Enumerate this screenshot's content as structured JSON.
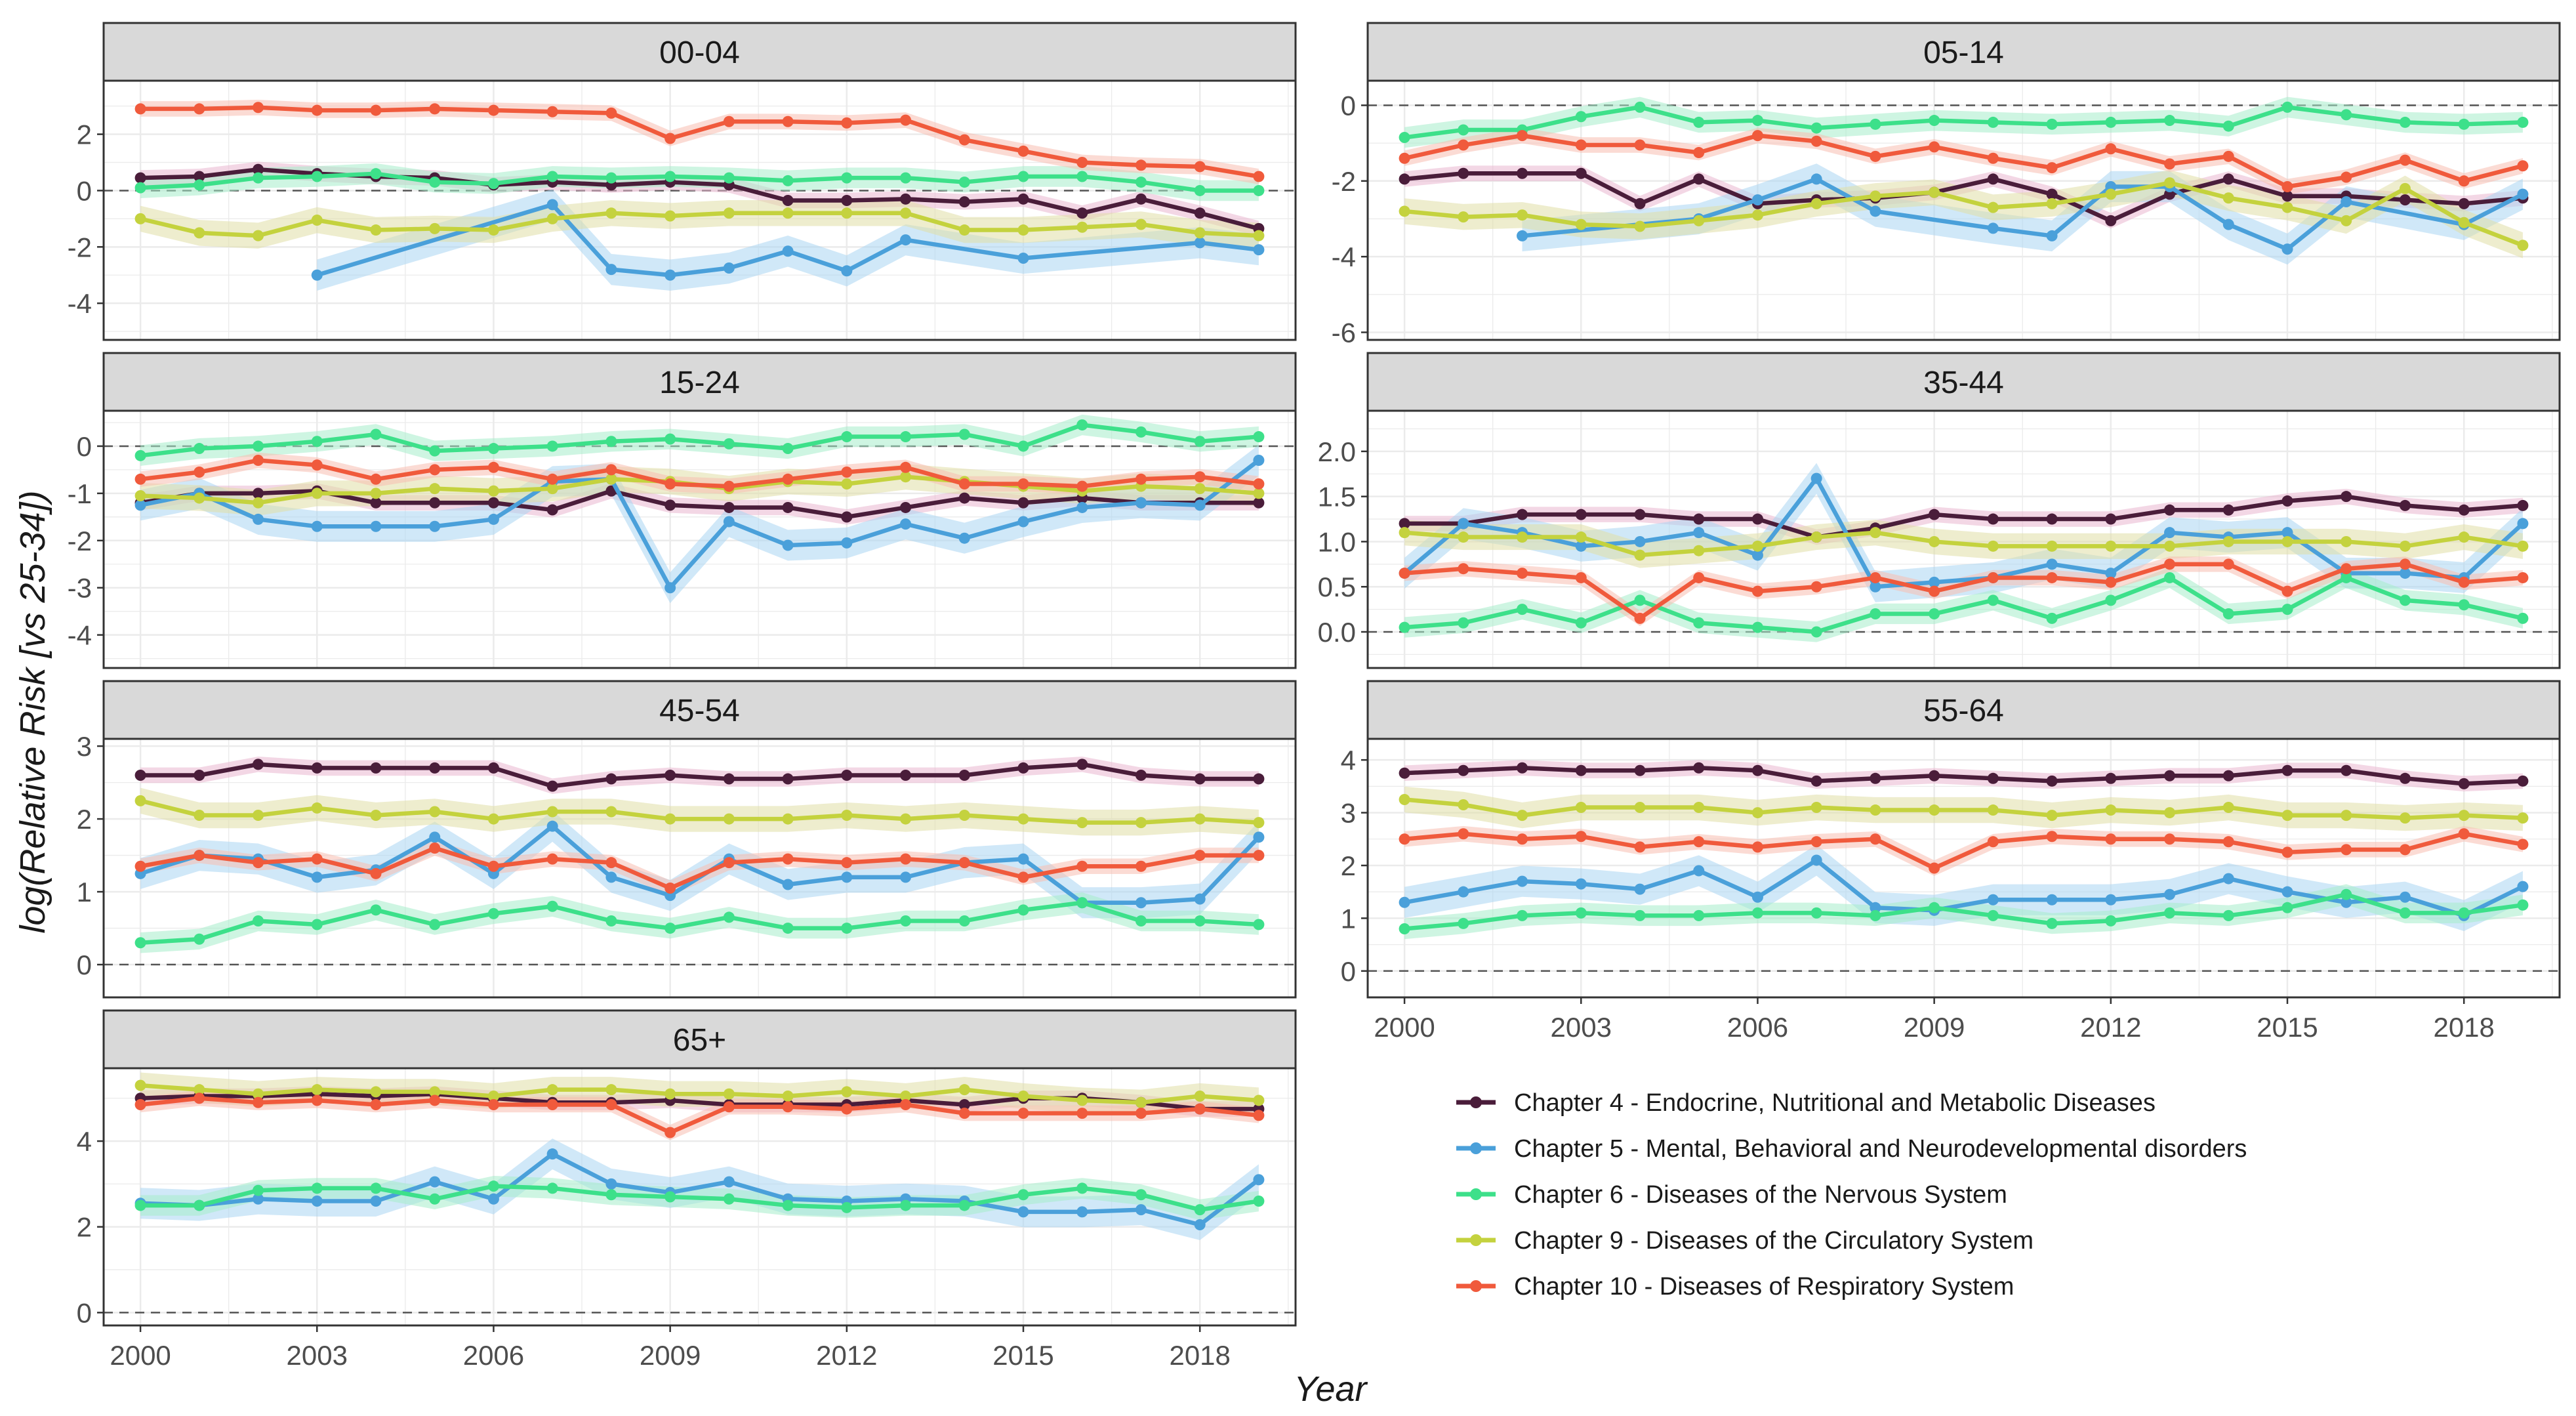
{
  "chart_data": {
    "type": "line",
    "title": "",
    "ylabel": "log(Relative Risk [vs 25-34])",
    "xlabel": "Year",
    "x": [
      2000,
      2001,
      2002,
      2003,
      2004,
      2005,
      2006,
      2007,
      2008,
      2009,
      2010,
      2011,
      2012,
      2013,
      2014,
      2015,
      2016,
      2017,
      2018,
      2019
    ],
    "x_ticks": [
      "2000",
      "2003",
      "2006",
      "2009",
      "2012",
      "2015",
      "2018"
    ],
    "legend_position": "bottom-right",
    "series_meta": [
      {
        "key": "ch4",
        "name": "Chapter 4 - Endocrine, Nutritional and Metabolic Diseases",
        "color": "#4a1d3a",
        "band": "#e9b6cf"
      },
      {
        "key": "ch5",
        "name": "Chapter 5 - Mental, Behavioral and Neurodevelopmental disorders",
        "color": "#4aa0da",
        "band": "#a9d6f2"
      },
      {
        "key": "ch6",
        "name": "Chapter 6 - Diseases of the Nervous System",
        "color": "#3de08a",
        "band": "#a6eccb"
      },
      {
        "key": "ch9",
        "name": "Chapter 9 - Diseases of the Circulatory System",
        "color": "#c4d23e",
        "band": "#e0dfa6"
      },
      {
        "key": "ch10",
        "name": "Chapter 10 - Diseases of Respiratory System",
        "color": "#f05a3c",
        "band": "#f8bdb0"
      }
    ],
    "panels": [
      {
        "label": "00-04",
        "ylim": [
          -5.3,
          3.9
        ],
        "yticks": [
          -4,
          -2,
          0,
          2
        ],
        "series": {
          "ch4": [
            0.45,
            0.5,
            0.75,
            0.6,
            0.5,
            0.45,
            0.2,
            0.3,
            0.2,
            0.3,
            0.2,
            -0.35,
            -0.35,
            -0.3,
            -0.4,
            -0.3,
            -0.8,
            -0.3,
            -0.8,
            -1.35
          ],
          "ch5": [
            null,
            null,
            null,
            -3.0,
            null,
            null,
            null,
            -0.5,
            -2.8,
            -3.0,
            -2.75,
            -2.15,
            -2.85,
            -1.75,
            null,
            -2.4,
            null,
            null,
            -1.85,
            -2.1
          ],
          "ch6": [
            0.1,
            0.2,
            0.45,
            0.5,
            0.6,
            0.3,
            0.25,
            0.5,
            0.45,
            0.5,
            0.45,
            0.35,
            0.45,
            0.45,
            0.3,
            0.5,
            0.5,
            0.3,
            0.0,
            0.0
          ],
          "ch9": [
            -1.0,
            -1.5,
            -1.6,
            -1.05,
            -1.4,
            -1.35,
            -1.4,
            -1.0,
            -0.8,
            -0.9,
            -0.8,
            -0.8,
            -0.8,
            -0.8,
            -1.4,
            -1.4,
            -1.3,
            -1.2,
            -1.5,
            -1.6
          ],
          "ch10": [
            2.9,
            2.9,
            2.95,
            2.85,
            2.85,
            2.9,
            2.85,
            2.8,
            2.75,
            1.85,
            2.45,
            2.45,
            2.4,
            2.5,
            1.8,
            1.4,
            1.0,
            0.9,
            0.85,
            0.5
          ]
        }
      },
      {
        "label": "05-14",
        "ylim": [
          -6.2,
          0.65
        ],
        "yticks": [
          -6,
          -4,
          -2,
          0
        ],
        "series": {
          "ch4": [
            -1.95,
            -1.8,
            -1.8,
            -1.8,
            -2.6,
            -1.95,
            -2.6,
            -2.5,
            -2.45,
            -2.3,
            -1.95,
            -2.35,
            -3.05,
            -2.35,
            -1.95,
            -2.4,
            -2.4,
            -2.5,
            -2.6,
            -2.45
          ],
          "ch5": [
            null,
            null,
            -3.45,
            null,
            null,
            -3.0,
            -2.5,
            -1.95,
            -2.8,
            null,
            -3.25,
            -3.45,
            -2.15,
            -2.15,
            -3.15,
            -3.8,
            -2.55,
            null,
            -3.15,
            -2.35
          ],
          "ch6": [
            -0.85,
            -0.65,
            -0.65,
            -0.3,
            -0.05,
            -0.45,
            -0.4,
            -0.6,
            -0.5,
            -0.4,
            -0.45,
            -0.5,
            -0.45,
            -0.4,
            -0.55,
            -0.05,
            -0.25,
            -0.45,
            -0.5,
            -0.45
          ],
          "ch9": [
            -2.8,
            -2.95,
            -2.9,
            -3.15,
            -3.2,
            -3.05,
            -2.9,
            -2.6,
            -2.4,
            -2.3,
            -2.7,
            -2.6,
            -2.35,
            -2.05,
            -2.45,
            -2.7,
            -3.05,
            -2.2,
            -3.1,
            -3.7
          ],
          "ch10": [
            -1.4,
            -1.05,
            -0.8,
            -1.05,
            -1.05,
            -1.25,
            -0.8,
            -0.95,
            -1.35,
            -1.1,
            -1.4,
            -1.65,
            -1.15,
            -1.55,
            -1.35,
            -2.15,
            -1.9,
            -1.45,
            -2.0,
            -1.6
          ]
        }
      },
      {
        "label": "15-24",
        "ylim": [
          -4.7,
          0.75
        ],
        "yticks": [
          -4,
          -3,
          -2,
          -1,
          0
        ],
        "series": {
          "ch4": [
            -1.2,
            -1.0,
            -1.0,
            -0.95,
            -1.2,
            -1.2,
            -1.2,
            -1.35,
            -0.95,
            -1.25,
            -1.3,
            -1.3,
            -1.5,
            -1.3,
            -1.1,
            -1.2,
            -1.1,
            -1.2,
            -1.2,
            -1.2
          ],
          "ch5": [
            -1.25,
            -1.0,
            -1.55,
            -1.7,
            -1.7,
            -1.7,
            -1.55,
            -0.75,
            -0.7,
            -3.0,
            -1.6,
            -2.1,
            -2.05,
            -1.65,
            -1.95,
            -1.6,
            -1.3,
            -1.2,
            -1.25,
            -0.3
          ],
          "ch6": [
            -0.2,
            -0.05,
            0.0,
            0.1,
            0.25,
            -0.1,
            -0.05,
            0.0,
            0.1,
            0.15,
            0.05,
            -0.05,
            0.2,
            0.2,
            0.25,
            0.0,
            0.45,
            0.3,
            0.1,
            0.2
          ],
          "ch9": [
            -1.05,
            -1.1,
            -1.2,
            -1.0,
            -1.0,
            -0.9,
            -0.95,
            -0.9,
            -0.7,
            -0.75,
            -0.9,
            -0.75,
            -0.8,
            -0.65,
            -0.75,
            -0.85,
            -0.95,
            -0.85,
            -0.9,
            -1.0
          ],
          "ch10": [
            -0.7,
            -0.55,
            -0.3,
            -0.4,
            -0.7,
            -0.5,
            -0.45,
            -0.7,
            -0.5,
            -0.8,
            -0.85,
            -0.7,
            -0.55,
            -0.45,
            -0.8,
            -0.8,
            -0.85,
            -0.7,
            -0.65,
            -0.8
          ]
        }
      },
      {
        "label": "35-44",
        "ylim": [
          -0.4,
          2.45
        ],
        "yticks": [
          0.0,
          0.5,
          1.0,
          1.5,
          2.0
        ],
        "series": {
          "ch4": [
            1.2,
            1.2,
            1.3,
            1.3,
            1.3,
            1.25,
            1.25,
            1.05,
            1.15,
            1.3,
            1.25,
            1.25,
            1.25,
            1.35,
            1.35,
            1.45,
            1.5,
            1.4,
            1.35,
            1.4
          ],
          "ch5": [
            0.65,
            1.2,
            1.1,
            0.95,
            1.0,
            1.1,
            0.85,
            1.7,
            0.5,
            0.55,
            0.6,
            0.75,
            0.65,
            1.1,
            1.05,
            1.1,
            0.65,
            0.65,
            0.6,
            1.2
          ],
          "ch6": [
            0.05,
            0.1,
            0.25,
            0.1,
            0.35,
            0.1,
            0.05,
            0.0,
            0.2,
            0.2,
            0.35,
            0.15,
            0.35,
            0.6,
            0.2,
            0.25,
            0.6,
            0.35,
            0.3,
            0.15
          ],
          "ch9": [
            1.1,
            1.05,
            1.05,
            1.05,
            0.85,
            0.9,
            0.95,
            1.05,
            1.1,
            1.0,
            0.95,
            0.95,
            0.95,
            0.95,
            1.0,
            1.0,
            1.0,
            0.95,
            1.05,
            0.95
          ],
          "ch10": [
            0.65,
            0.7,
            0.65,
            0.6,
            0.15,
            0.6,
            0.45,
            0.5,
            0.6,
            0.45,
            0.6,
            0.6,
            0.55,
            0.75,
            0.75,
            0.45,
            0.7,
            0.75,
            0.55,
            0.6
          ]
        }
      },
      {
        "label": "45-54",
        "ylim": [
          -0.45,
          3.1
        ],
        "yticks": [
          0,
          1,
          2,
          3
        ],
        "series": {
          "ch4": [
            2.6,
            2.6,
            2.75,
            2.7,
            2.7,
            2.7,
            2.7,
            2.45,
            2.55,
            2.6,
            2.55,
            2.55,
            2.6,
            2.6,
            2.6,
            2.7,
            2.75,
            2.6,
            2.55,
            2.55
          ],
          "ch5": [
            1.25,
            1.5,
            1.45,
            1.2,
            1.3,
            1.75,
            1.25,
            1.9,
            1.2,
            0.95,
            1.45,
            1.1,
            1.2,
            1.2,
            1.4,
            1.45,
            0.85,
            0.85,
            0.9,
            1.75
          ],
          "ch6": [
            0.3,
            0.35,
            0.6,
            0.55,
            0.75,
            0.55,
            0.7,
            0.8,
            0.6,
            0.5,
            0.65,
            0.5,
            0.5,
            0.6,
            0.6,
            0.75,
            0.85,
            0.6,
            0.6,
            0.55
          ],
          "ch9": [
            2.25,
            2.05,
            2.05,
            2.15,
            2.05,
            2.1,
            2.0,
            2.1,
            2.1,
            2.0,
            2.0,
            2.0,
            2.05,
            2.0,
            2.05,
            2.0,
            1.95,
            1.95,
            2.0,
            1.95
          ],
          "ch10": [
            1.35,
            1.5,
            1.4,
            1.45,
            1.25,
            1.6,
            1.35,
            1.45,
            1.4,
            1.05,
            1.4,
            1.45,
            1.4,
            1.45,
            1.4,
            1.2,
            1.35,
            1.35,
            1.5,
            1.5
          ]
        }
      },
      {
        "label": "55-64",
        "ylim": [
          -0.5,
          4.4
        ],
        "yticks": [
          0,
          1,
          2,
          3,
          4
        ],
        "series": {
          "ch4": [
            3.75,
            3.8,
            3.85,
            3.8,
            3.8,
            3.85,
            3.8,
            3.6,
            3.65,
            3.7,
            3.65,
            3.6,
            3.65,
            3.7,
            3.7,
            3.8,
            3.8,
            3.65,
            3.55,
            3.6
          ],
          "ch5": [
            1.3,
            1.5,
            1.7,
            1.65,
            1.55,
            1.9,
            1.4,
            2.1,
            1.2,
            1.15,
            1.35,
            1.35,
            1.35,
            1.45,
            1.75,
            1.5,
            1.3,
            1.4,
            1.05,
            1.6
          ],
          "ch6": [
            0.8,
            0.9,
            1.05,
            1.1,
            1.05,
            1.05,
            1.1,
            1.1,
            1.05,
            1.2,
            1.05,
            0.9,
            0.95,
            1.1,
            1.05,
            1.2,
            1.45,
            1.1,
            1.1,
            1.25
          ],
          "ch9": [
            3.25,
            3.15,
            2.95,
            3.1,
            3.1,
            3.1,
            3.0,
            3.1,
            3.05,
            3.05,
            3.05,
            2.95,
            3.05,
            3.0,
            3.1,
            2.95,
            2.95,
            2.9,
            2.95,
            2.9
          ],
          "ch10": [
            2.5,
            2.6,
            2.5,
            2.55,
            2.35,
            2.45,
            2.35,
            2.45,
            2.5,
            1.95,
            2.45,
            2.55,
            2.5,
            2.5,
            2.45,
            2.25,
            2.3,
            2.3,
            2.6,
            2.4
          ]
        }
      },
      {
        "label": "65+",
        "ylim": [
          -0.3,
          5.7
        ],
        "yticks": [
          0,
          2,
          4
        ],
        "series": {
          "ch4": [
            5.0,
            5.05,
            5.05,
            5.1,
            5.05,
            5.1,
            5.0,
            4.9,
            4.9,
            4.95,
            4.85,
            4.85,
            4.85,
            4.95,
            4.85,
            5.0,
            5.0,
            4.9,
            4.75,
            4.75
          ],
          "ch5": [
            2.55,
            2.5,
            2.65,
            2.6,
            2.6,
            3.05,
            2.65,
            3.7,
            3.0,
            2.8,
            3.05,
            2.65,
            2.6,
            2.65,
            2.6,
            2.35,
            2.35,
            2.4,
            2.05,
            3.1
          ],
          "ch6": [
            2.5,
            2.5,
            2.85,
            2.9,
            2.9,
            2.65,
            2.95,
            2.9,
            2.75,
            2.7,
            2.65,
            2.5,
            2.45,
            2.5,
            2.5,
            2.75,
            2.9,
            2.75,
            2.4,
            2.6
          ],
          "ch9": [
            5.3,
            5.2,
            5.1,
            5.2,
            5.15,
            5.15,
            5.05,
            5.2,
            5.2,
            5.1,
            5.1,
            5.05,
            5.15,
            5.05,
            5.2,
            5.05,
            4.95,
            4.9,
            5.05,
            4.95
          ],
          "ch10": [
            4.85,
            5.0,
            4.9,
            4.95,
            4.85,
            4.95,
            4.85,
            4.85,
            4.85,
            4.2,
            4.8,
            4.8,
            4.75,
            4.85,
            4.65,
            4.65,
            4.65,
            4.65,
            4.75,
            4.6
          ]
        }
      }
    ]
  }
}
